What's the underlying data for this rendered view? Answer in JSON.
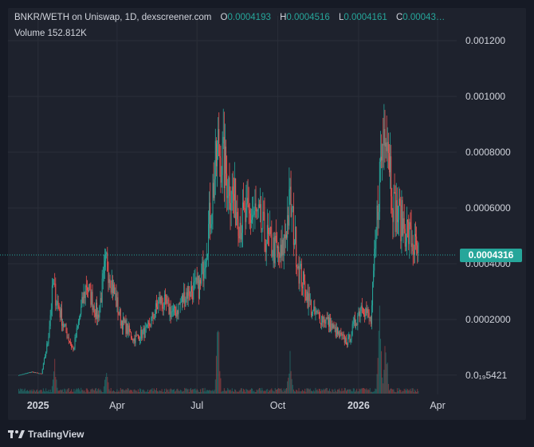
{
  "legend": {
    "pair": "BNKR/WETH on Uniswap, 1D, dexscreener.com",
    "o_label": "O",
    "o_value": "0.0004193",
    "h_label": "H",
    "h_value": "0.0004516",
    "l_label": "L",
    "l_value": "0.0004161",
    "c_label": "C",
    "c_value": "0.00043…",
    "volume_label": "Volume",
    "volume_value": "152.812K"
  },
  "last_price_tag": "0.0004316",
  "brand": "TradingView",
  "colors": {
    "up": "#26a69a",
    "down": "#ef5350",
    "background": "#1e222d",
    "grid": "#2a2e39",
    "axis_text": "#d1d4dc"
  },
  "chart_data": {
    "type": "candlestick",
    "title": "BNKR/WETH on Uniswap, 1D, dexscreener.com",
    "y_scale": "linear",
    "ylim": [
      -6e-05,
      0.00126
    ],
    "y_ticks": [
      {
        "value": 0.0012,
        "label": "0.001200"
      },
      {
        "value": 0.001,
        "label": "0.001000"
      },
      {
        "value": 0.0008,
        "label": "0.0008000"
      },
      {
        "value": 0.0006,
        "label": "0.0006000"
      },
      {
        "value": 0.0004,
        "label": "0.0004000"
      },
      {
        "value": 0.0002,
        "label": "0.0002000"
      },
      {
        "value": 5.421e-07,
        "label": "0.0₁₉5421"
      }
    ],
    "x_ticks": [
      {
        "value": "2025-01-01",
        "label": "2025",
        "bold": true
      },
      {
        "value": "2025-04-01",
        "label": "Apr",
        "bold": false
      },
      {
        "value": "2025-07-01",
        "label": "Jul",
        "bold": false
      },
      {
        "value": "2025-10-01",
        "label": "Oct",
        "bold": false
      },
      {
        "value": "2026-01-01",
        "label": "2026",
        "bold": true
      },
      {
        "value": "2026-04-01",
        "label": "Apr",
        "bold": false
      }
    ],
    "xlim": [
      "2024-12-05",
      "2026-04-20"
    ],
    "last_price": 0.0004316,
    "grid": true,
    "series_close_anchors": [
      {
        "date": "2024-12-10",
        "close": 5e-07
      },
      {
        "date": "2024-12-25",
        "close": 1.2e-05
      },
      {
        "date": "2025-01-05",
        "close": 5e-06
      },
      {
        "date": "2025-01-12",
        "close": 0.00012
      },
      {
        "date": "2025-01-18",
        "close": 0.00032
      },
      {
        "date": "2025-01-30",
        "close": 0.00018
      },
      {
        "date": "2025-02-10",
        "close": 9e-05
      },
      {
        "date": "2025-02-25",
        "close": 0.00033
      },
      {
        "date": "2025-03-10",
        "close": 0.00021
      },
      {
        "date": "2025-03-20",
        "close": 0.00041
      },
      {
        "date": "2025-04-05",
        "close": 0.0002
      },
      {
        "date": "2025-04-20",
        "close": 0.00013
      },
      {
        "date": "2025-05-05",
        "close": 0.00016
      },
      {
        "date": "2025-05-20",
        "close": 0.00027
      },
      {
        "date": "2025-06-05",
        "close": 0.00022
      },
      {
        "date": "2025-06-20",
        "close": 0.0003
      },
      {
        "date": "2025-07-05",
        "close": 0.00032
      },
      {
        "date": "2025-07-15",
        "close": 0.00055
      },
      {
        "date": "2025-07-25",
        "close": 0.00082
      },
      {
        "date": "2025-08-05",
        "close": 0.0007
      },
      {
        "date": "2025-08-20",
        "close": 0.00055
      },
      {
        "date": "2025-09-05",
        "close": 0.00058
      },
      {
        "date": "2025-09-20",
        "close": 0.00048
      },
      {
        "date": "2025-10-05",
        "close": 0.00042
      },
      {
        "date": "2025-10-15",
        "close": 0.00062
      },
      {
        "date": "2025-10-25",
        "close": 0.00038
      },
      {
        "date": "2025-11-10",
        "close": 0.00022
      },
      {
        "date": "2025-11-25",
        "close": 0.0002
      },
      {
        "date": "2025-12-10",
        "close": 0.00014
      },
      {
        "date": "2025-12-20",
        "close": 0.00012
      },
      {
        "date": "2026-01-05",
        "close": 0.00026
      },
      {
        "date": "2026-01-15",
        "close": 0.00019
      },
      {
        "date": "2026-01-25",
        "close": 0.00072
      },
      {
        "date": "2026-02-01",
        "close": 0.00095
      },
      {
        "date": "2026-02-10",
        "close": 0.0006
      },
      {
        "date": "2026-02-25",
        "close": 0.00052
      },
      {
        "date": "2026-03-10",
        "close": 0.00043
      }
    ],
    "volume_spikes": [
      {
        "date": "2025-01-20",
        "value": 0.25
      },
      {
        "date": "2025-03-20",
        "value": 0.22
      },
      {
        "date": "2025-07-25",
        "value": 0.6
      },
      {
        "date": "2025-10-15",
        "value": 0.35
      },
      {
        "date": "2026-01-25",
        "value": 0.62
      },
      {
        "date": "2026-02-01",
        "value": 0.5
      }
    ]
  }
}
